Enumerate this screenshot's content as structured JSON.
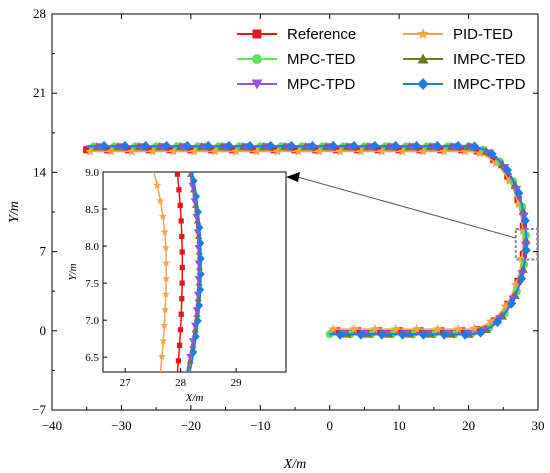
{
  "chart_data": {
    "type": "line",
    "xlabel": "X/m",
    "ylabel": "Y/m",
    "xlim": [
      -40,
      30
    ],
    "ylim": [
      -7,
      28
    ],
    "xticks": [
      "-40",
      "-30",
      "-20",
      "-10",
      "0",
      "10",
      "20",
      "30"
    ],
    "yticks": [
      "-7",
      "0",
      "7",
      "14",
      "21",
      "28"
    ],
    "legend_position": "top-right",
    "series": [
      {
        "name": "Reference",
        "color": "#e8151b",
        "marker": "square"
      },
      {
        "name": "PID-TED",
        "color": "#f5a54a",
        "marker": "star"
      },
      {
        "name": "MPC-TED",
        "color": "#57e35f",
        "marker": "circle"
      },
      {
        "name": "IMPC-TED",
        "color": "#6b7d1e",
        "marker": "triangle-up"
      },
      {
        "name": "MPC-TPD",
        "color": "#9b4fe0",
        "marker": "triangle-down"
      },
      {
        "name": "IMPC-TPD",
        "color": "#1e7be0",
        "marker": "diamond"
      }
    ],
    "path_description": "U-shaped track: straight from x=-35 to x=20 at y=16, semicircle of radius 8 centered at (20, 8), straight back from x=20 to x=0 at y=0",
    "inset": {
      "xlabel": "X/m",
      "ylabel": "Y/m",
      "xlim": [
        26.6,
        29.9
      ],
      "ylim": [
        6.3,
        9.0
      ],
      "xticks": [
        "27",
        "28",
        "29"
      ],
      "yticks": [
        "6.5",
        "7.0",
        "7.5",
        "8.0",
        "8.5",
        "9.0"
      ],
      "series_x_at_y": [
        {
          "name": "Reference",
          "x_at_bottom": 27.93,
          "x_at_mid": 28.03,
          "x_at_top": 27.93
        },
        {
          "name": "PID-TED",
          "x_at_bottom": 27.62,
          "x_at_mid": 27.74,
          "x_at_top": 27.5
        },
        {
          "name": "MPC-TED",
          "x_at_bottom": 28.12,
          "x_at_mid": 28.35,
          "x_at_top": 28.18
        },
        {
          "name": "IMPC-TED",
          "x_at_bottom": 28.1,
          "x_at_mid": 28.34,
          "x_at_top": 28.16
        },
        {
          "name": "MPC-TPD",
          "x_at_bottom": 28.08,
          "x_at_mid": 28.32,
          "x_at_top": 28.15
        },
        {
          "name": "IMPC-TPD",
          "x_at_bottom": 28.14,
          "x_at_mid": 28.37,
          "x_at_top": 28.2
        }
      ]
    }
  }
}
